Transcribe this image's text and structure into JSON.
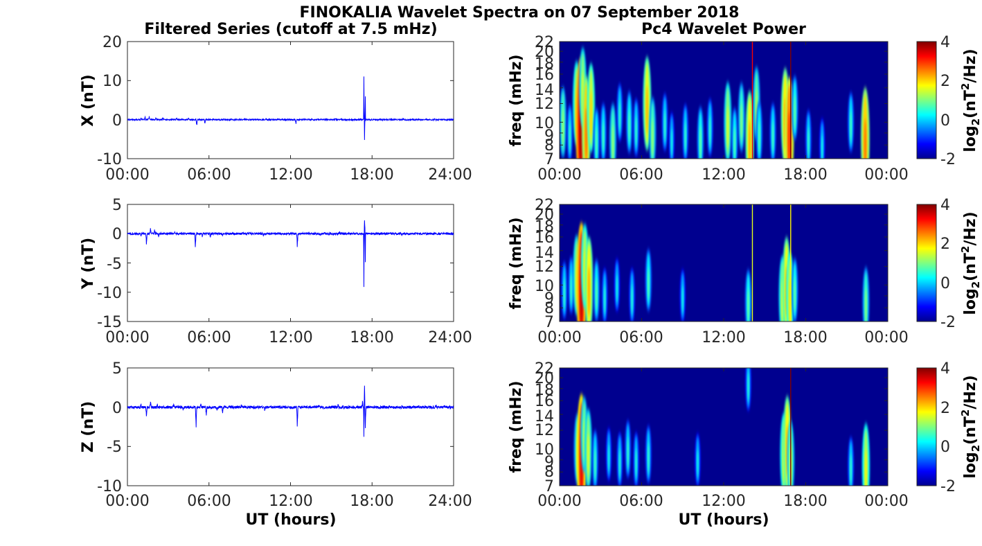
{
  "figure": {
    "title": "FINOKALIA Wavelet Spectra on 07 September 2018",
    "left_title": "Filtered Series (cutoff at 7.5 mHz)",
    "right_title": "Pc4 Wavelet Power",
    "xlabel": "UT (hours)"
  },
  "colors": {
    "series_line": "#0000ff",
    "spectrum_background": "#00008f",
    "axis": "#262626"
  },
  "chart_data": [
    {
      "type": "line",
      "component": "X",
      "ylabel": "X (nT)",
      "ylim": [
        -10,
        20
      ],
      "yticks": [
        "20",
        "10",
        "0",
        "-10"
      ],
      "xlim": [
        0,
        24
      ],
      "xticks": [
        "00:00",
        "06:00",
        "12:00",
        "18:00",
        "24:00"
      ],
      "events": [
        {
          "t": 1.0,
          "amp": 0.5
        },
        {
          "t": 1.3,
          "amp": 0.7
        },
        {
          "t": 1.6,
          "amp": 0.8
        },
        {
          "t": 2.1,
          "amp": 0.5
        },
        {
          "t": 2.6,
          "amp": 0.4
        },
        {
          "t": 3.6,
          "amp": 0.3
        },
        {
          "t": 4.5,
          "amp": 0.4
        },
        {
          "t": 5.1,
          "amp": -1.5
        },
        {
          "t": 5.7,
          "amp": -1.0
        },
        {
          "t": 7.1,
          "amp": 0.4
        },
        {
          "t": 8.6,
          "amp": 0.3
        },
        {
          "t": 10.2,
          "amp": 0.4
        },
        {
          "t": 12.4,
          "amp": -1.2
        },
        {
          "t": 13.6,
          "amp": 0.3
        },
        {
          "t": 15.3,
          "amp": 0.4
        },
        {
          "t": 17.4,
          "amp": 16.0
        },
        {
          "t": 17.45,
          "amp": -6.0
        },
        {
          "t": 17.5,
          "amp": 7.0
        },
        {
          "t": 20.3,
          "amp": 0.4
        },
        {
          "t": 22.6,
          "amp": 0.3
        }
      ]
    },
    {
      "type": "line",
      "component": "Y",
      "ylabel": "Y (nT)",
      "ylim": [
        -15,
        5
      ],
      "yticks": [
        "5",
        "0",
        "-5",
        "-10",
        "-15"
      ],
      "xlim": [
        0,
        24
      ],
      "xticks": [
        "00:00",
        "06:00",
        "12:00",
        "18:00",
        "24:00"
      ],
      "events": [
        {
          "t": 1.0,
          "amp": -0.4
        },
        {
          "t": 1.4,
          "amp": -1.8
        },
        {
          "t": 1.7,
          "amp": 0.9
        },
        {
          "t": 2.0,
          "amp": 0.6
        },
        {
          "t": 2.3,
          "amp": -0.5
        },
        {
          "t": 3.5,
          "amp": 0.3
        },
        {
          "t": 5.0,
          "amp": -2.5
        },
        {
          "t": 5.5,
          "amp": -0.6
        },
        {
          "t": 6.1,
          "amp": -0.8
        },
        {
          "t": 7.0,
          "amp": -0.4
        },
        {
          "t": 8.5,
          "amp": 0.3
        },
        {
          "t": 10.0,
          "amp": -0.3
        },
        {
          "t": 12.5,
          "amp": -2.2
        },
        {
          "t": 14.2,
          "amp": -0.3
        },
        {
          "t": 15.6,
          "amp": 0.3
        },
        {
          "t": 17.4,
          "amp": -13.0
        },
        {
          "t": 17.45,
          "amp": 2.5
        },
        {
          "t": 17.5,
          "amp": -6.0
        },
        {
          "t": 20.2,
          "amp": -0.3
        },
        {
          "t": 22.8,
          "amp": -0.3
        }
      ]
    },
    {
      "type": "line",
      "component": "Z",
      "ylabel": "Z (nT)",
      "ylim": [
        -10,
        5
      ],
      "yticks": [
        "5",
        "0",
        "-5",
        "-10"
      ],
      "xlim": [
        0,
        24
      ],
      "xticks": [
        "00:00",
        "06:00",
        "12:00",
        "18:00",
        "24:00"
      ],
      "events": [
        {
          "t": 1.0,
          "amp": 0.4
        },
        {
          "t": 1.4,
          "amp": -1.3
        },
        {
          "t": 1.7,
          "amp": 0.7
        },
        {
          "t": 2.2,
          "amp": 0.4
        },
        {
          "t": 3.4,
          "amp": 0.3
        },
        {
          "t": 4.1,
          "amp": -0.3
        },
        {
          "t": 5.05,
          "amp": -2.6
        },
        {
          "t": 5.4,
          "amp": 0.4
        },
        {
          "t": 5.8,
          "amp": -1.0
        },
        {
          "t": 6.6,
          "amp": -0.5
        },
        {
          "t": 7.0,
          "amp": -0.7
        },
        {
          "t": 8.4,
          "amp": 0.3
        },
        {
          "t": 10.1,
          "amp": -0.3
        },
        {
          "t": 12.5,
          "amp": -2.5
        },
        {
          "t": 14.1,
          "amp": 0.3
        },
        {
          "t": 15.5,
          "amp": 0.3
        },
        {
          "t": 17.3,
          "amp": 0.8
        },
        {
          "t": 17.4,
          "amp": -5.5
        },
        {
          "t": 17.45,
          "amp": 3.0
        },
        {
          "t": 17.5,
          "amp": -3.0
        },
        {
          "t": 20.2,
          "amp": 0.3
        },
        {
          "t": 22.7,
          "amp": 0.3
        }
      ]
    },
    {
      "type": "heatmap",
      "component": "X",
      "ylabel": "freq (mHz)",
      "ylim": [
        7,
        22
      ],
      "yticks": [
        "22",
        "20",
        "18",
        "16",
        "14",
        "12",
        "10",
        "9",
        "8",
        "7"
      ],
      "xlim": [
        0,
        24
      ],
      "xticks": [
        "00:00",
        "06:00",
        "12:00",
        "18:00",
        "00:00"
      ],
      "colorbar": {
        "label": "log",
        "sub": "2",
        "unit_open": "(nT",
        "sup": "2",
        "unit_close": "/Hz)",
        "range": [
          -2,
          4
        ],
        "ticks": [
          "4",
          "2",
          "0",
          "-2"
        ]
      },
      "bursts": [
        {
          "t": 0.25,
          "f": 10.0,
          "p": 1.2
        },
        {
          "t": 0.75,
          "f": 9.0,
          "p": 0.6
        },
        {
          "t": 1.25,
          "f": 12.0,
          "p": 1.8
        },
        {
          "t": 1.55,
          "f": 10.0,
          "p": 3.8
        },
        {
          "t": 1.7,
          "f": 14.0,
          "p": 1.6
        },
        {
          "t": 1.95,
          "f": 9.5,
          "p": 2.6
        },
        {
          "t": 2.3,
          "f": 11.5,
          "p": 2.0
        },
        {
          "t": 2.7,
          "f": 8.5,
          "p": 0.8
        },
        {
          "t": 3.2,
          "f": 9.0,
          "p": 0.7
        },
        {
          "t": 3.9,
          "f": 8.5,
          "p": 1.2
        },
        {
          "t": 4.4,
          "f": 11.0,
          "p": 0.6
        },
        {
          "t": 5.1,
          "f": 10.0,
          "p": 0.8
        },
        {
          "t": 5.6,
          "f": 9.5,
          "p": 0.6
        },
        {
          "t": 6.4,
          "f": 12.0,
          "p": 2.2
        },
        {
          "t": 6.8,
          "f": 9.0,
          "p": 1.2
        },
        {
          "t": 7.7,
          "f": 10.0,
          "p": 0.6
        },
        {
          "t": 8.2,
          "f": 8.5,
          "p": 0.4
        },
        {
          "t": 9.2,
          "f": 9.0,
          "p": 0.6
        },
        {
          "t": 10.3,
          "f": 8.5,
          "p": 0.9
        },
        {
          "t": 11.0,
          "f": 9.5,
          "p": 0.6
        },
        {
          "t": 12.3,
          "f": 10.0,
          "p": 1.6
        },
        {
          "t": 12.8,
          "f": 8.5,
          "p": 0.8
        },
        {
          "t": 13.3,
          "f": 10.5,
          "p": 1.1
        },
        {
          "t": 13.9,
          "f": 8.5,
          "p": 2.3
        },
        {
          "t": 14.4,
          "f": 12.0,
          "p": 1.3
        },
        {
          "t": 14.6,
          "f": 9.0,
          "p": 0.8
        },
        {
          "t": 15.6,
          "f": 9.0,
          "p": 0.7
        },
        {
          "t": 16.5,
          "f": 10.5,
          "p": 2.4
        },
        {
          "t": 16.8,
          "f": 9.0,
          "p": 3.0
        },
        {
          "t": 17.2,
          "f": 11.5,
          "p": 0.9
        },
        {
          "t": 18.2,
          "f": 8.5,
          "p": 0.6
        },
        {
          "t": 19.2,
          "f": 8.0,
          "p": 0.4
        },
        {
          "t": 21.3,
          "f": 10.0,
          "p": 0.7
        },
        {
          "t": 22.35,
          "f": 8.5,
          "p": 2.6
        }
      ],
      "streaks": [
        {
          "t": 14.1,
          "p": 3.3
        },
        {
          "t": 16.9,
          "p": 4.0
        }
      ]
    },
    {
      "type": "heatmap",
      "component": "Y",
      "ylabel": "freq (mHz)",
      "ylim": [
        7,
        22
      ],
      "yticks": [
        "22",
        "20",
        "18",
        "16",
        "14",
        "12",
        "10",
        "9",
        "8",
        "7"
      ],
      "xlim": [
        0,
        24
      ],
      "xticks": [
        "00:00",
        "06:00",
        "12:00",
        "18:00",
        "00:00"
      ],
      "colorbar": {
        "label": "log",
        "sub": "2",
        "unit_open": "(nT",
        "sup": "2",
        "unit_close": "/Hz)",
        "range": [
          -2,
          4
        ],
        "ticks": [
          "4",
          "2",
          "0",
          "-2"
        ]
      },
      "bursts": [
        {
          "t": 0.35,
          "f": 9.5,
          "p": 0.6
        },
        {
          "t": 0.85,
          "f": 10.0,
          "p": 0.6
        },
        {
          "t": 1.25,
          "f": 11.0,
          "p": 1.6
        },
        {
          "t": 1.6,
          "f": 10.0,
          "p": 3.6
        },
        {
          "t": 1.85,
          "f": 12.0,
          "p": 1.8
        },
        {
          "t": 2.15,
          "f": 10.0,
          "p": 2.3
        },
        {
          "t": 2.7,
          "f": 9.5,
          "p": 0.8
        },
        {
          "t": 3.3,
          "f": 9.0,
          "p": 0.5
        },
        {
          "t": 4.2,
          "f": 10.0,
          "p": 0.4
        },
        {
          "t": 5.3,
          "f": 9.0,
          "p": 0.5
        },
        {
          "t": 6.5,
          "f": 10.5,
          "p": 0.8
        },
        {
          "t": 9.0,
          "f": 9.0,
          "p": 0.4
        },
        {
          "t": 13.8,
          "f": 8.5,
          "p": 0.9
        },
        {
          "t": 16.3,
          "f": 9.0,
          "p": 1.6
        },
        {
          "t": 16.6,
          "f": 10.0,
          "p": 2.3
        },
        {
          "t": 16.85,
          "f": 9.0,
          "p": 1.9
        },
        {
          "t": 17.2,
          "f": 9.5,
          "p": 0.9
        },
        {
          "t": 22.4,
          "f": 8.5,
          "p": 1.1
        }
      ],
      "streaks": [
        {
          "t": 14.1,
          "p": 1.6
        },
        {
          "t": 16.9,
          "p": 1.8
        }
      ]
    },
    {
      "type": "heatmap",
      "component": "Z",
      "ylabel": "freq (mHz)",
      "ylim": [
        7,
        22
      ],
      "yticks": [
        "22",
        "20",
        "18",
        "16",
        "14",
        "12",
        "10",
        "9",
        "8",
        "7"
      ],
      "xlim": [
        0,
        24
      ],
      "xticks": [
        "00:00",
        "06:00",
        "12:00",
        "18:00",
        "00:00"
      ],
      "xlabel": "UT (hours)",
      "colorbar": {
        "label": "log",
        "sub": "2",
        "unit_open": "(nT",
        "sup": "2",
        "unit_close": "/Hz)",
        "range": [
          -2,
          4
        ],
        "ticks": [
          "4",
          "2",
          "0",
          "-2"
        ]
      },
      "bursts": [
        {
          "t": 1.3,
          "f": 10.0,
          "p": 1.2
        },
        {
          "t": 1.6,
          "f": 9.5,
          "p": 3.4
        },
        {
          "t": 1.8,
          "f": 11.5,
          "p": 1.4
        },
        {
          "t": 2.1,
          "f": 10.0,
          "p": 1.6
        },
        {
          "t": 2.6,
          "f": 9.0,
          "p": 0.7
        },
        {
          "t": 3.6,
          "f": 9.5,
          "p": 0.4
        },
        {
          "t": 4.4,
          "f": 9.0,
          "p": 0.5
        },
        {
          "t": 5.0,
          "f": 10.0,
          "p": 0.6
        },
        {
          "t": 5.6,
          "f": 9.0,
          "p": 0.5
        },
        {
          "t": 6.5,
          "f": 9.5,
          "p": 0.6
        },
        {
          "t": 10.1,
          "f": 9.0,
          "p": 0.4
        },
        {
          "t": 13.8,
          "f": 19.0,
          "p": 0.5
        },
        {
          "t": 16.4,
          "f": 9.5,
          "p": 1.7
        },
        {
          "t": 16.65,
          "f": 10.5,
          "p": 2.3
        },
        {
          "t": 16.9,
          "f": 9.0,
          "p": 1.5
        },
        {
          "t": 21.3,
          "f": 8.5,
          "p": 0.6
        },
        {
          "t": 22.4,
          "f": 8.5,
          "p": 1.8
        }
      ],
      "streaks": [
        {
          "t": 16.9,
          "p": 4.0
        }
      ]
    }
  ]
}
